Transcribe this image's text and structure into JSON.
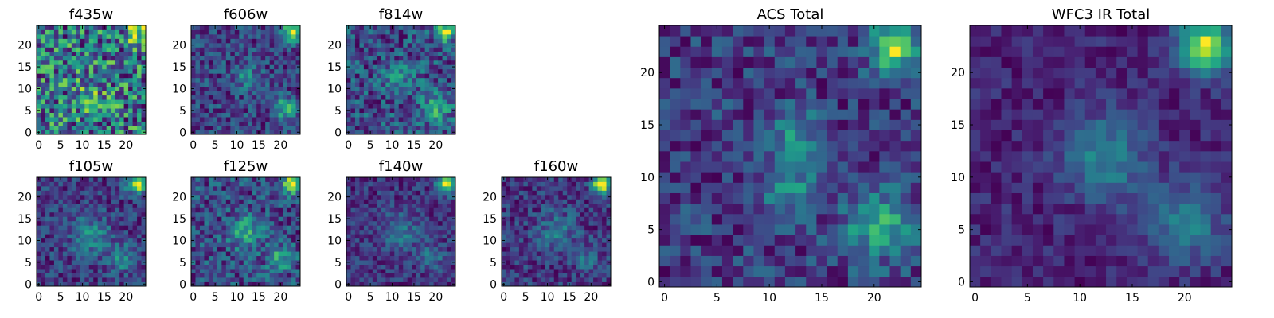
{
  "chart_data": [
    {
      "id": "f435w",
      "type": "heatmap",
      "title": "f435w",
      "colormap": "viridis",
      "grid": false,
      "n": 25,
      "xlim": [
        -0.5,
        24.5
      ],
      "ylim": [
        -0.5,
        24.5
      ],
      "xticks": [
        0,
        5,
        10,
        15,
        20
      ],
      "yticks": [
        0,
        5,
        10,
        15,
        20
      ],
      "noise": 0.28,
      "base": 0.58,
      "sources": [
        {
          "x": 22.5,
          "y": 23.0,
          "amp": 0.35,
          "sigma": 1.6
        },
        {
          "x": 12,
          "y": 9,
          "amp": 0.12,
          "sigma": 3.0
        }
      ]
    },
    {
      "id": "f606w",
      "type": "heatmap",
      "title": "f606w",
      "colormap": "viridis",
      "grid": false,
      "n": 25,
      "xlim": [
        -0.5,
        24.5
      ],
      "ylim": [
        -0.5,
        24.5
      ],
      "xticks": [
        0,
        5,
        10,
        15,
        20
      ],
      "yticks": [
        0,
        5,
        10,
        15,
        20
      ],
      "noise": 0.22,
      "base": 0.3,
      "sources": [
        {
          "x": 22.5,
          "y": 23.0,
          "amp": 0.7,
          "sigma": 1.5
        },
        {
          "x": 12,
          "y": 13,
          "amp": 0.25,
          "sigma": 2.0
        },
        {
          "x": 21,
          "y": 5.5,
          "amp": 0.45,
          "sigma": 1.8
        }
      ]
    },
    {
      "id": "f814w",
      "type": "heatmap",
      "title": "f814w",
      "colormap": "viridis",
      "grid": false,
      "n": 25,
      "xlim": [
        -0.5,
        24.5
      ],
      "ylim": [
        -0.5,
        24.5
      ],
      "xticks": [
        0,
        5,
        10,
        15,
        20
      ],
      "yticks": [
        0,
        5,
        10,
        15,
        20
      ],
      "noise": 0.22,
      "base": 0.45,
      "sources": [
        {
          "x": 22.5,
          "y": 23.0,
          "amp": 0.55,
          "sigma": 1.5
        },
        {
          "x": 12,
          "y": 12,
          "amp": 0.2,
          "sigma": 2.5
        },
        {
          "x": 20,
          "y": 5.5,
          "amp": 0.35,
          "sigma": 2.2
        }
      ]
    },
    {
      "id": "f105w",
      "type": "heatmap",
      "title": "f105w",
      "colormap": "viridis",
      "grid": false,
      "n": 25,
      "xlim": [
        -0.5,
        24.5
      ],
      "ylim": [
        -0.5,
        24.5
      ],
      "xticks": [
        0,
        5,
        10,
        15,
        20
      ],
      "yticks": [
        0,
        5,
        10,
        15,
        20
      ],
      "noise": 0.14,
      "base": 0.42,
      "sources": [
        {
          "x": 22.5,
          "y": 23.0,
          "amp": 0.6,
          "sigma": 1.5
        },
        {
          "x": 12,
          "y": 11,
          "amp": 0.25,
          "sigma": 3.0
        },
        {
          "x": 19,
          "y": 6,
          "amp": 0.22,
          "sigma": 2.2
        }
      ]
    },
    {
      "id": "f125w",
      "type": "heatmap",
      "title": "f125w",
      "colormap": "viridis",
      "grid": false,
      "n": 25,
      "xlim": [
        -0.5,
        24.5
      ],
      "ylim": [
        -0.5,
        24.5
      ],
      "xticks": [
        0,
        5,
        10,
        15,
        20
      ],
      "yticks": [
        0,
        5,
        10,
        15,
        20
      ],
      "noise": 0.16,
      "base": 0.48,
      "sources": [
        {
          "x": 22.5,
          "y": 23.0,
          "amp": 0.5,
          "sigma": 1.5
        },
        {
          "x": 12,
          "y": 12,
          "amp": 0.3,
          "sigma": 2.6
        },
        {
          "x": 20,
          "y": 6,
          "amp": 0.25,
          "sigma": 2.0
        }
      ]
    },
    {
      "id": "f140w",
      "type": "heatmap",
      "title": "f140w",
      "colormap": "viridis",
      "grid": false,
      "n": 25,
      "xlim": [
        -0.5,
        24.5
      ],
      "ylim": [
        -0.5,
        24.5
      ],
      "xticks": [
        0,
        5,
        10,
        15,
        20
      ],
      "yticks": [
        0,
        5,
        10,
        15,
        20
      ],
      "noise": 0.13,
      "base": 0.38,
      "sources": [
        {
          "x": 22.5,
          "y": 23.0,
          "amp": 0.65,
          "sigma": 1.5
        },
        {
          "x": 12,
          "y": 12,
          "amp": 0.2,
          "sigma": 3.0
        },
        {
          "x": 19,
          "y": 6,
          "amp": 0.18,
          "sigma": 2.2
        }
      ]
    },
    {
      "id": "f160w",
      "type": "heatmap",
      "title": "f160w",
      "colormap": "viridis",
      "grid": false,
      "n": 25,
      "xlim": [
        -0.5,
        24.5
      ],
      "ylim": [
        -0.5,
        24.5
      ],
      "xticks": [
        0,
        5,
        10,
        15,
        20
      ],
      "yticks": [
        0,
        5,
        10,
        15,
        20
      ],
      "noise": 0.14,
      "base": 0.3,
      "sources": [
        {
          "x": 22.5,
          "y": 23.0,
          "amp": 0.7,
          "sigma": 1.5
        },
        {
          "x": 12,
          "y": 12,
          "amp": 0.2,
          "sigma": 3.0
        },
        {
          "x": 19,
          "y": 6,
          "amp": 0.15,
          "sigma": 2.2
        }
      ]
    },
    {
      "id": "acs",
      "type": "heatmap",
      "title": "ACS Total",
      "colormap": "viridis",
      "grid": false,
      "n": 25,
      "xlim": [
        -0.5,
        24.5
      ],
      "ylim": [
        -0.5,
        24.5
      ],
      "xticks": [
        0,
        5,
        10,
        15,
        20
      ],
      "yticks": [
        0,
        5,
        10,
        15,
        20
      ],
      "noise": 0.16,
      "base": 0.4,
      "sources": [
        {
          "x": 22.0,
          "y": 22.5,
          "amp": 0.62,
          "sigma": 1.6
        },
        {
          "x": 12.5,
          "y": 14.5,
          "amp": 0.28,
          "sigma": 1.6
        },
        {
          "x": 12.0,
          "y": 9.5,
          "amp": 0.25,
          "sigma": 2.0
        },
        {
          "x": 20.5,
          "y": 5.5,
          "amp": 0.42,
          "sigma": 2.2
        }
      ]
    },
    {
      "id": "wfc3",
      "type": "heatmap",
      "title": "WFC3 IR Total",
      "colormap": "viridis",
      "grid": false,
      "n": 25,
      "xlim": [
        -0.5,
        24.5
      ],
      "ylim": [
        -0.5,
        24.5
      ],
      "xticks": [
        0,
        5,
        10,
        15,
        20
      ],
      "yticks": [
        0,
        5,
        10,
        15,
        20
      ],
      "noise": 0.08,
      "base": 0.32,
      "sources": [
        {
          "x": 22.0,
          "y": 22.5,
          "amp": 0.65,
          "sigma": 1.8
        },
        {
          "x": 12.5,
          "y": 12.0,
          "amp": 0.28,
          "sigma": 2.8
        },
        {
          "x": 20.0,
          "y": 5.5,
          "amp": 0.25,
          "sigma": 2.6
        }
      ]
    }
  ]
}
